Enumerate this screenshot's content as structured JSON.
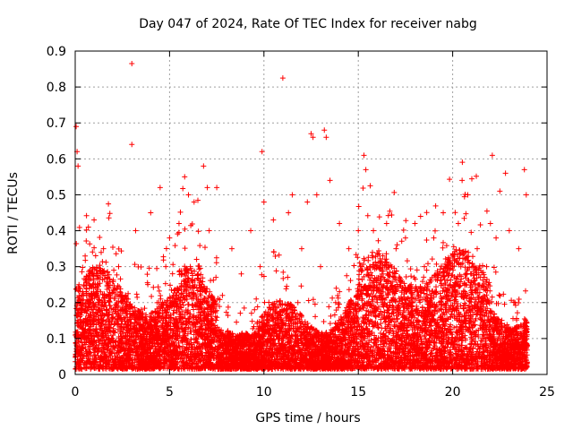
{
  "chart_data": {
    "type": "scatter",
    "title": "Day 047 of 2024, Rate Of TEC Index for receiver nabg",
    "xlabel": "GPS time / hours",
    "ylabel": "ROTI / TECUs",
    "xlim": [
      0,
      25
    ],
    "ylim": [
      0,
      0.9
    ],
    "xticks": [
      "0",
      "5",
      "10",
      "15",
      "20",
      "25"
    ],
    "yticks": [
      "0",
      "0.1",
      "0.2",
      "0.3",
      "0.4",
      "0.5",
      "0.6",
      "0.7",
      "0.8",
      "0.9"
    ],
    "grid": true,
    "marker": "+",
    "color": "#ff0000",
    "series": [
      {
        "x": [
          0.05,
          0.1,
          0.15,
          0.2,
          0.3,
          0.5,
          0.7,
          1.0,
          1.2,
          1.5,
          1.8,
          2.0,
          2.3,
          2.5,
          2.8,
          3.0,
          3.0,
          3.2,
          3.5,
          3.8,
          4.0,
          4.2,
          4.5,
          4.8,
          5.0,
          5.2,
          5.5,
          5.8,
          6.0,
          6.1,
          6.3,
          6.5,
          6.8,
          7.0,
          7.1,
          7.3,
          7.5,
          7.8,
          8.0,
          8.3,
          8.5,
          8.8,
          9.0,
          9.3,
          9.5,
          9.8,
          9.9,
          10.0,
          10.2,
          10.5,
          10.8,
          11.0,
          11.3,
          11.5,
          11.8,
          12.0,
          12.3,
          12.5,
          12.6,
          12.8,
          13.0,
          13.2,
          13.3,
          13.5,
          13.8,
          14.0,
          14.3,
          14.5,
          14.8,
          15.0,
          15.3,
          15.4,
          15.6,
          15.8,
          16.0,
          16.3,
          16.5,
          16.8,
          17.0,
          17.3,
          17.5,
          17.8,
          18.0,
          18.3,
          18.5,
          18.8,
          19.0,
          19.3,
          19.5,
          19.8,
          20.0,
          20.3,
          20.5,
          20.8,
          21.0,
          21.3,
          21.5,
          21.8,
          22.0,
          22.1,
          22.3,
          22.5,
          22.8,
          23.0,
          23.3,
          23.5,
          23.8,
          23.9
        ],
        "y": [
          0.69,
          0.62,
          0.58,
          0.25,
          0.18,
          0.12,
          0.41,
          0.43,
          0.2,
          0.35,
          0.15,
          0.08,
          0.3,
          0.22,
          0.12,
          0.865,
          0.64,
          0.4,
          0.18,
          0.1,
          0.45,
          0.15,
          0.52,
          0.3,
          0.38,
          0.12,
          0.42,
          0.55,
          0.5,
          0.3,
          0.48,
          0.2,
          0.58,
          0.52,
          0.4,
          0.15,
          0.52,
          0.22,
          0.1,
          0.35,
          0.08,
          0.28,
          0.05,
          0.4,
          0.18,
          0.3,
          0.62,
          0.48,
          0.15,
          0.43,
          0.1,
          0.825,
          0.45,
          0.5,
          0.2,
          0.35,
          0.48,
          0.67,
          0.66,
          0.5,
          0.3,
          0.68,
          0.66,
          0.54,
          0.2,
          0.42,
          0.08,
          0.35,
          0.15,
          0.4,
          0.61,
          0.57,
          0.3,
          0.4,
          0.2,
          0.33,
          0.42,
          0.18,
          0.35,
          0.1,
          0.38,
          0.25,
          0.42,
          0.44,
          0.3,
          0.15,
          0.38,
          0.2,
          0.45,
          0.28,
          0.3,
          0.42,
          0.54,
          0.5,
          0.28,
          0.35,
          0.2,
          0.3,
          0.42,
          0.61,
          0.38,
          0.51,
          0.56,
          0.4,
          0.2,
          0.35,
          0.57,
          0.5
        ]
      }
    ]
  }
}
